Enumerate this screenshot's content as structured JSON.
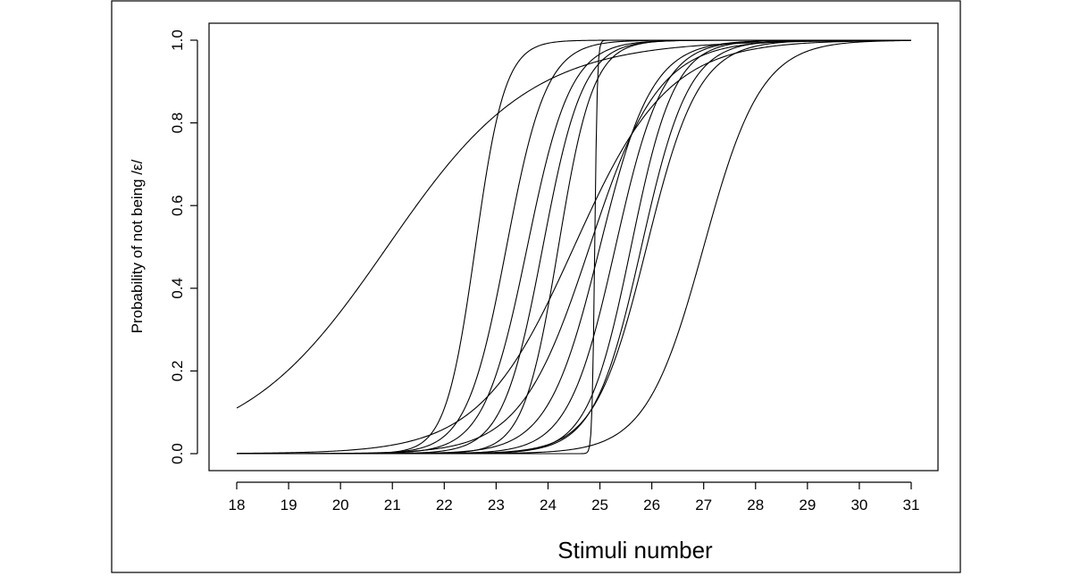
{
  "chart_data": {
    "type": "line",
    "title": "",
    "xlabel": "Stimuli number",
    "ylabel": "Probability of not being /ε/",
    "xlim": [
      18,
      31
    ],
    "ylim": [
      0,
      1
    ],
    "x_ticks": [
      18,
      19,
      20,
      21,
      22,
      23,
      24,
      25,
      26,
      27,
      28,
      29,
      30,
      31
    ],
    "y_ticks": [
      0.0,
      0.2,
      0.4,
      0.6,
      0.8,
      1.0
    ],
    "y_tick_labels": [
      "0.0",
      "0.2",
      "0.4",
      "0.6",
      "0.8",
      "1.0"
    ],
    "grid": false,
    "legend": "none",
    "line_color": "#000000",
    "series_logistic": [
      {
        "midpoint": 20.9,
        "slope": 0.72
      },
      {
        "midpoint": 22.6,
        "slope": 3.5
      },
      {
        "midpoint": 23.2,
        "slope": 2.6
      },
      {
        "midpoint": 23.6,
        "slope": 2.4
      },
      {
        "midpoint": 23.9,
        "slope": 2.6
      },
      {
        "midpoint": 24.2,
        "slope": 3.0
      },
      {
        "midpoint": 24.5,
        "slope": 1.1
      },
      {
        "midpoint": 24.8,
        "slope": 1.5
      },
      {
        "midpoint": 25.0,
        "slope": 2.0
      },
      {
        "midpoint": 25.3,
        "slope": 2.2
      },
      {
        "midpoint": 25.6,
        "slope": 2.4
      },
      {
        "midpoint": 25.8,
        "slope": 2.2
      },
      {
        "midpoint": 25.9,
        "slope": 2.0
      },
      {
        "midpoint": 27.0,
        "slope": 1.8
      },
      {
        "midpoint": 24.9,
        "slope": 40.0
      }
    ]
  }
}
